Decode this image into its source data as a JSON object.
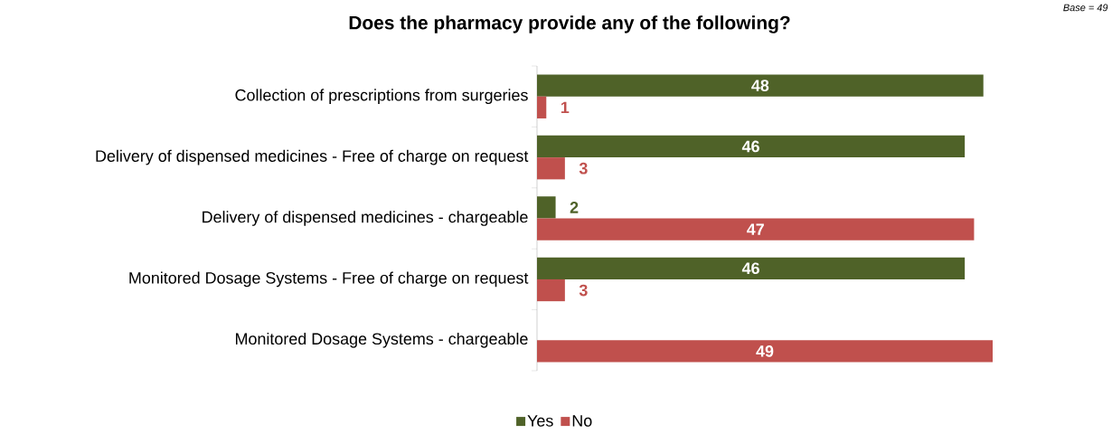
{
  "chart_data": {
    "type": "bar",
    "orientation": "horizontal",
    "title": "Does the pharmacy provide any of the following?",
    "annotations": [
      "Base = 49"
    ],
    "categories": [
      "Collection of prescriptions from surgeries",
      "Delivery of dispensed medicines - Free of charge on request",
      "Delivery of dispensed medicines - chargeable",
      "Monitored Dosage Systems - Free of charge on request",
      "Monitored Dosage Systems - chargeable"
    ],
    "series": [
      {
        "name": "Yes",
        "color": "#4f6228",
        "values": [
          48,
          46,
          2,
          46,
          null
        ]
      },
      {
        "name": "No",
        "color": "#c0504d",
        "values": [
          1,
          3,
          47,
          3,
          49
        ]
      }
    ],
    "data_labels": true,
    "legend": "bottom"
  }
}
